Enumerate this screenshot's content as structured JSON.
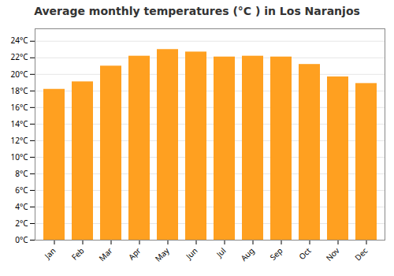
{
  "chart_data": {
    "type": "bar",
    "title": "Average monthly temperatures (°C ) in Los Naranjos",
    "categories": [
      "Jan",
      "Feb",
      "Mar",
      "Apr",
      "May",
      "Jun",
      "Jul",
      "Aug",
      "Sep",
      "Oct",
      "Nov",
      "Dec"
    ],
    "values": [
      18.2,
      19.1,
      21.0,
      22.2,
      23.0,
      22.7,
      22.1,
      22.2,
      22.1,
      21.2,
      19.7,
      18.9
    ],
    "color": "#FFA020",
    "ylim": [
      0,
      25.5
    ],
    "yticks": [
      {
        "value": 0,
        "label": "0°C"
      },
      {
        "value": 2,
        "label": "2°C"
      },
      {
        "value": 4,
        "label": "4°C"
      },
      {
        "value": 6,
        "label": "6°C"
      },
      {
        "value": 8,
        "label": "8°C"
      },
      {
        "value": 10,
        "label": "10°C"
      },
      {
        "value": 12,
        "label": "12°C"
      },
      {
        "value": 14,
        "label": "14°C"
      },
      {
        "value": 16,
        "label": "16°C"
      },
      {
        "value": 18,
        "label": "18°C"
      },
      {
        "value": 20,
        "label": "20°C"
      },
      {
        "value": 22,
        "label": "22°C"
      },
      {
        "value": 24,
        "label": "24°C"
      }
    ],
    "grid": true
  }
}
